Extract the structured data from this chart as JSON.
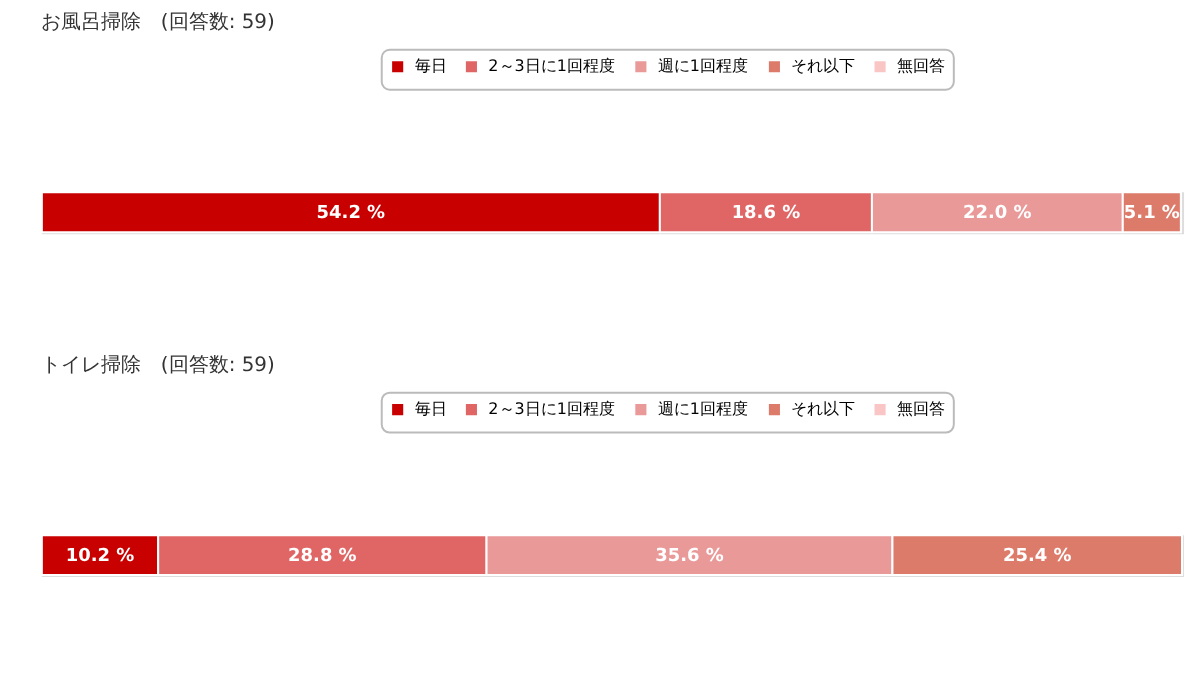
{
  "chart_data": [
    {
      "type": "bar",
      "title": "お風呂掃除　(回答数: 59)",
      "orientation": "horizontal",
      "stacked": true,
      "categories": [
        null
      ],
      "xlim": [
        0,
        100
      ],
      "tick_labels": false,
      "legend": "top",
      "series": [
        {
          "name": "毎日",
          "color": "#c80000",
          "values": [
            54.2
          ],
          "value_labels": [
            "54.2 %"
          ]
        },
        {
          "name": "2～3日に1回程度",
          "color": "#e06666",
          "values": [
            18.6
          ],
          "value_labels": [
            "18.6 %"
          ]
        },
        {
          "name": "週に1回程度",
          "color": "#ea9999",
          "values": [
            22.0
          ],
          "value_labels": [
            "22.0 %"
          ]
        },
        {
          "name": "それ以下",
          "color": "#dd7b6b",
          "values": [
            5.1
          ],
          "value_labels": [
            "5.1 %"
          ]
        },
        {
          "name": "無回答",
          "color": "#f9c5c5",
          "values": [
            0
          ],
          "value_labels": [
            null
          ]
        }
      ]
    },
    {
      "type": "bar",
      "title": "トイレ掃除　(回答数: 59)",
      "orientation": "horizontal",
      "stacked": true,
      "categories": [
        null
      ],
      "xlim": [
        0,
        100
      ],
      "tick_labels": false,
      "legend": "top",
      "series": [
        {
          "name": "毎日",
          "color": "#c80000",
          "values": [
            10.2
          ],
          "value_labels": [
            "10.2 %"
          ]
        },
        {
          "name": "2～3日に1回程度",
          "color": "#e06666",
          "values": [
            28.8
          ],
          "value_labels": [
            "28.8 %"
          ]
        },
        {
          "name": "週に1回程度",
          "color": "#ea9999",
          "values": [
            35.6
          ],
          "value_labels": [
            "35.6 %"
          ]
        },
        {
          "name": "それ以下",
          "color": "#dd7b6b",
          "values": [
            25.4
          ],
          "value_labels": [
            "25.4 %"
          ]
        },
        {
          "name": "無回答",
          "color": "#f9c5c5",
          "values": [
            0
          ],
          "value_labels": [
            null
          ]
        }
      ]
    }
  ]
}
